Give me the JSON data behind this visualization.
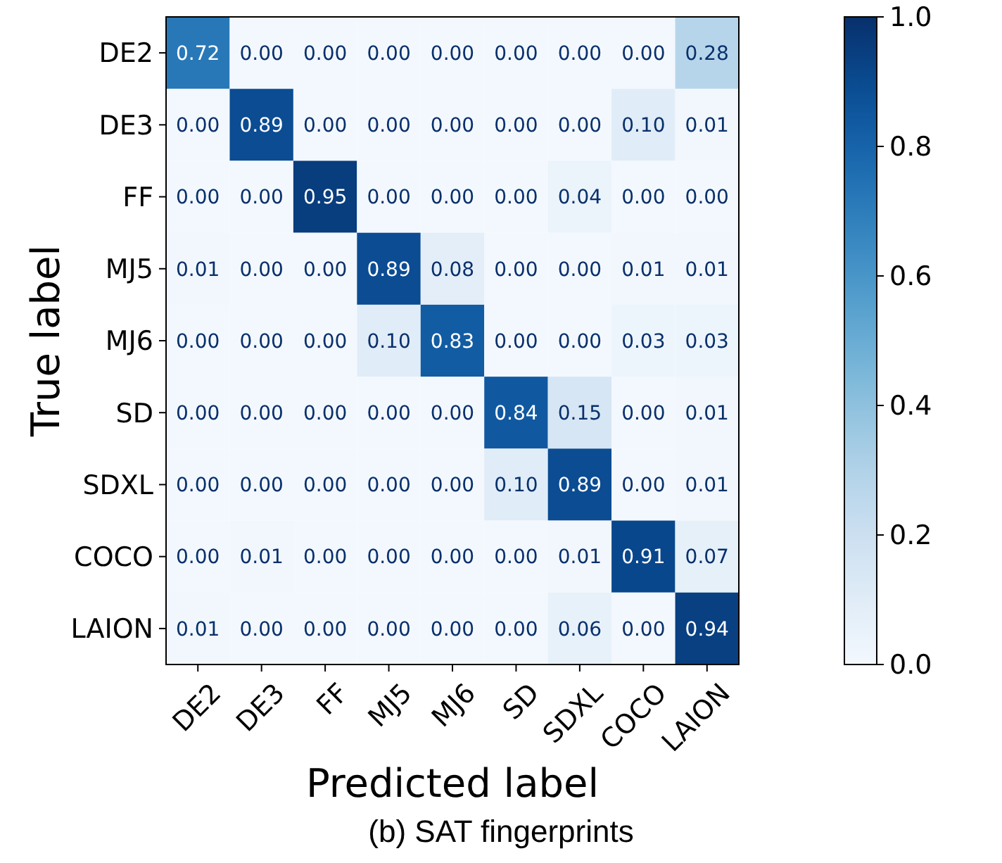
{
  "chart_data": {
    "type": "heatmap",
    "title": "(b) SAT fingerprints",
    "xlabel": "Predicted label",
    "ylabel": "True label",
    "categories": [
      "DE2",
      "DE3",
      "FF",
      "MJ5",
      "MJ6",
      "SD",
      "SDXL",
      "COCO",
      "LAION"
    ],
    "y_categories": [
      "DE2",
      "DE3",
      "FF",
      "MJ5",
      "MJ6",
      "SD",
      "SDXL",
      "COCO",
      "LAION"
    ],
    "cells": [
      [
        0.72,
        0,
        0,
        0,
        0,
        0,
        0,
        0,
        0.28
      ],
      [
        0,
        0.89,
        0,
        0,
        0,
        0,
        0,
        0.1,
        0.01
      ],
      [
        0,
        0,
        0.95,
        0,
        0,
        0,
        0.04,
        0,
        0
      ],
      [
        0.01,
        0,
        0,
        0.89,
        0.08,
        0,
        0,
        0.01,
        0.01
      ],
      [
        0,
        0,
        0,
        0.1,
        0.83,
        0,
        0,
        0.03,
        0.03
      ],
      [
        0,
        0,
        0,
        0,
        0,
        0.84,
        0.15,
        0,
        0.01
      ],
      [
        0,
        0,
        0,
        0,
        0,
        0.1,
        0.89,
        0,
        0.01
      ],
      [
        0,
        0.01,
        0,
        0,
        0,
        0,
        0.01,
        0.91,
        0.07
      ],
      [
        0.01,
        0,
        0,
        0,
        0,
        0,
        0.06,
        0,
        0.94
      ]
    ],
    "cell_labels": [
      [
        "0.72",
        "0.00",
        "0.00",
        "0.00",
        "0.00",
        "0.00",
        "0.00",
        "0.00",
        "0.28"
      ],
      [
        "0.00",
        "0.89",
        "0.00",
        "0.00",
        "0.00",
        "0.00",
        "0.00",
        "0.10",
        "0.01"
      ],
      [
        "0.00",
        "0.00",
        "0.95",
        "0.00",
        "0.00",
        "0.00",
        "0.04",
        "0.00",
        "0.00"
      ],
      [
        "0.01",
        "0.00",
        "0.00",
        "0.89",
        "0.08",
        "0.00",
        "0.00",
        "0.01",
        "0.01"
      ],
      [
        "0.00",
        "0.00",
        "0.00",
        "0.10",
        "0.83",
        "0.00",
        "0.00",
        "0.03",
        "0.03"
      ],
      [
        "0.00",
        "0.00",
        "0.00",
        "0.00",
        "0.00",
        "0.84",
        "0.15",
        "0.00",
        "0.01"
      ],
      [
        "0.00",
        "0.00",
        "0.00",
        "0.00",
        "0.00",
        "0.10",
        "0.89",
        "0.00",
        "0.01"
      ],
      [
        "0.00",
        "0.01",
        "0.00",
        "0.00",
        "0.00",
        "0.00",
        "0.01",
        "0.91",
        "0.07"
      ],
      [
        "0.01",
        "0.00",
        "0.00",
        "0.00",
        "0.00",
        "0.00",
        "0.06",
        "0.00",
        "0.94"
      ]
    ],
    "clim": [
      0,
      1
    ],
    "cticks": [
      {
        "value": 0,
        "label": "0.0"
      },
      {
        "value": 0.2,
        "label": "0.2"
      },
      {
        "value": 0.4,
        "label": "0.4"
      },
      {
        "value": 0.6,
        "label": "0.6"
      },
      {
        "value": 0.8,
        "label": "0.8"
      },
      {
        "value": 1,
        "label": "1.0"
      }
    ]
  }
}
